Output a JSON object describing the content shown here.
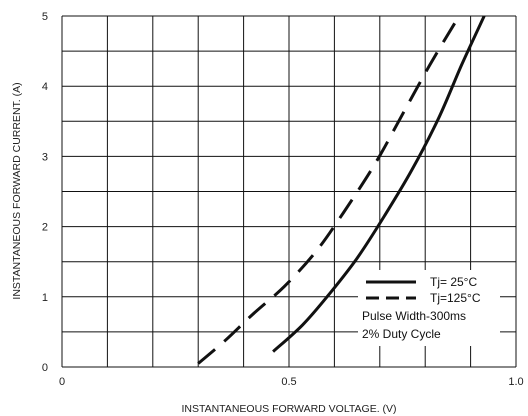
{
  "chart_data": {
    "type": "line",
    "xlabel": "INSTANTANEOUS FORWARD VOLTAGE. (V)",
    "ylabel": "INSTANTANEOUS FORWARD CURRENT. (A)",
    "xlim": [
      0,
      1.0
    ],
    "ylim": [
      0,
      5
    ],
    "x_ticks": [
      "0",
      "0.5",
      "1.0"
    ],
    "y_ticks": [
      "0",
      "1",
      "2",
      "3",
      "4",
      "5"
    ],
    "x_ticks_values": [
      0,
      0.5,
      1.0
    ],
    "y_ticks_values": [
      0,
      1,
      2,
      3,
      4,
      5
    ],
    "grid": true,
    "legend_position": "bottom-right",
    "series": [
      {
        "name": "Tj= 25°C",
        "style": "solid",
        "points": [
          [
            0.465,
            0.22
          ],
          [
            0.53,
            0.6
          ],
          [
            0.59,
            1.05
          ],
          [
            0.65,
            1.55
          ],
          [
            0.71,
            2.15
          ],
          [
            0.77,
            2.8
          ],
          [
            0.83,
            3.55
          ],
          [
            0.88,
            4.3
          ],
          [
            0.93,
            5.0
          ]
        ]
      },
      {
        "name": "Tj=125°C",
        "style": "dashed",
        "points": [
          [
            0.3,
            0.05
          ],
          [
            0.36,
            0.38
          ],
          [
            0.42,
            0.75
          ],
          [
            0.49,
            1.15
          ],
          [
            0.56,
            1.65
          ],
          [
            0.62,
            2.2
          ],
          [
            0.69,
            2.9
          ],
          [
            0.75,
            3.6
          ],
          [
            0.81,
            4.3
          ],
          [
            0.87,
            4.95
          ]
        ]
      }
    ],
    "annotations": [
      "Pulse Width-300ms",
      "2% Duty Cycle"
    ]
  },
  "colors": {
    "line": "#111111",
    "grid": "#111111",
    "background": "#ffffff"
  }
}
